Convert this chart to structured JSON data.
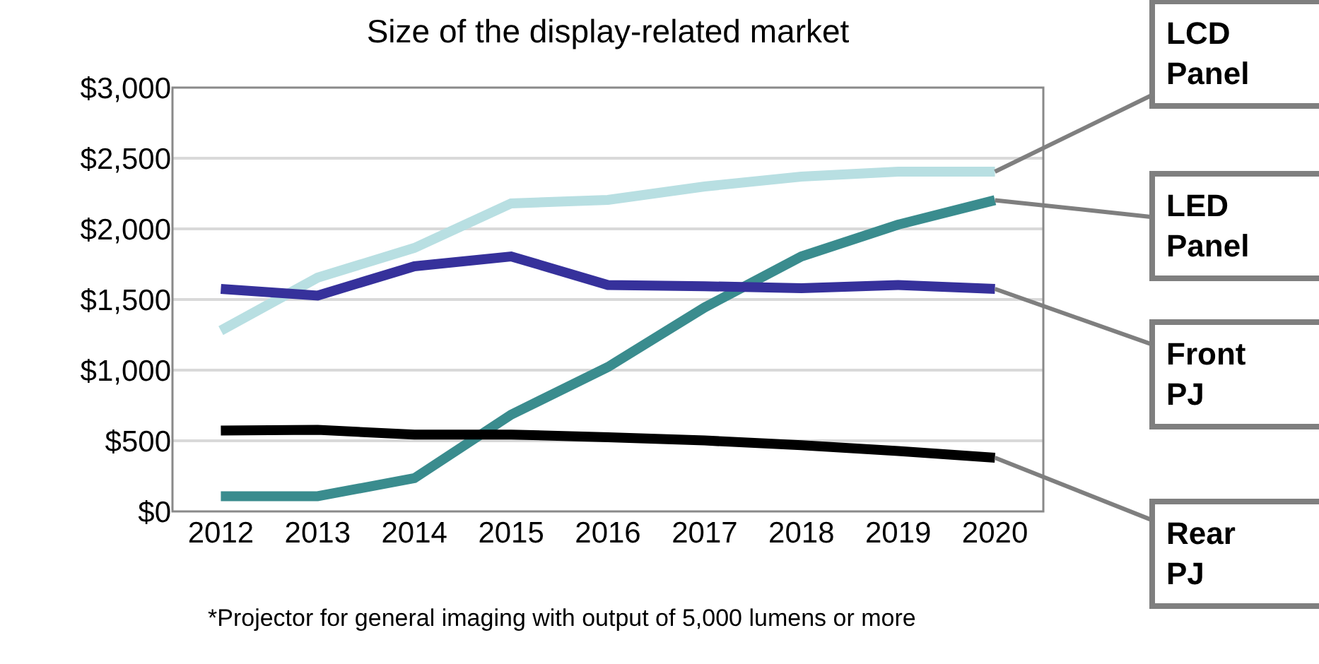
{
  "chart_data": {
    "type": "line",
    "title": "Size of the display-related market",
    "categories": [
      "2012",
      "2013",
      "2014",
      "2015",
      "2016",
      "2017",
      "2018",
      "2019",
      "2020"
    ],
    "series": [
      {
        "name": "LCD Panel",
        "color": "#b8dfe2",
        "values": [
          1280,
          1655,
          1865,
          2180,
          2205,
          2300,
          2370,
          2405,
          2405
        ]
      },
      {
        "name": "LED Panel",
        "color": "#3a8c8e",
        "values": [
          108,
          108,
          235,
          685,
          1022,
          1444,
          1805,
          2030,
          2203
        ]
      },
      {
        "name": "Front PJ",
        "color": "#36319b",
        "values": [
          1575,
          1528,
          1735,
          1805,
          1603,
          1594,
          1580,
          1603,
          1575
        ]
      },
      {
        "name": "Rear PJ",
        "color": "#000000",
        "values": [
          572,
          577,
          544,
          544,
          525,
          502,
          469,
          427,
          380
        ]
      }
    ],
    "ylim": [
      0,
      3000
    ],
    "yticks": [
      {
        "value": 0,
        "label": "$0"
      },
      {
        "value": 500,
        "label": "$500"
      },
      {
        "value": 1000,
        "label": "$1,000"
      },
      {
        "value": 1500,
        "label": "$1,500"
      },
      {
        "value": 2000,
        "label": "$2,000"
      },
      {
        "value": 2500,
        "label": "$2,500"
      },
      {
        "value": 3000,
        "label": "$3,000"
      }
    ],
    "grid": "y",
    "legend": false,
    "marker": "none",
    "line_style": "solid",
    "annotations": [
      "*Projector for general imaging with output of 5,000 lumens or more"
    ]
  }
}
